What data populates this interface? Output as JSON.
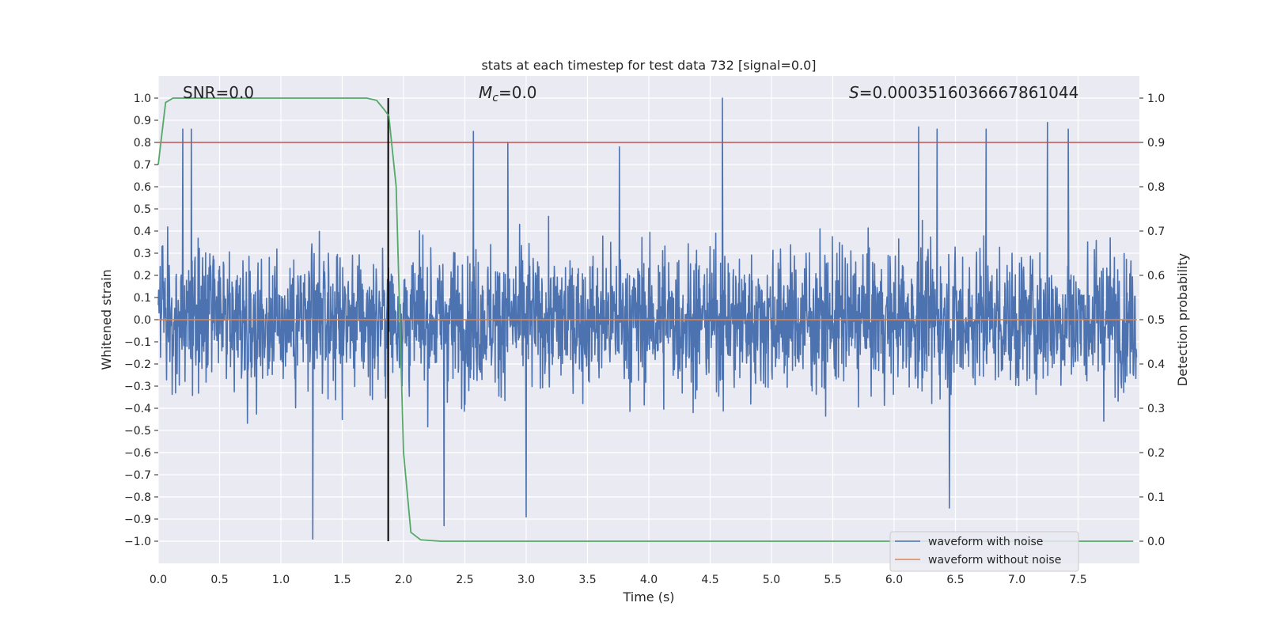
{
  "chart_data": {
    "type": "line",
    "title": "stats at each timestep for test data 732 [signal=0.0]",
    "xlabel": "Time (s)",
    "ylabel": "Whitened strain",
    "ylabel_right": "Detection probability",
    "xlim": [
      0.0,
      8.0
    ],
    "ylim": [
      -1.1,
      1.1
    ],
    "ylim_right": [
      -0.05,
      1.05
    ],
    "grid": true,
    "legend_position": "lower-right",
    "x_ticks": [
      0.0,
      0.5,
      1.0,
      1.5,
      2.0,
      2.5,
      3.0,
      3.5,
      4.0,
      4.5,
      5.0,
      5.5,
      6.0,
      6.5,
      7.0,
      7.5
    ],
    "x_tick_labels": [
      "0.0",
      "0.5",
      "1.0",
      "1.5",
      "2.0",
      "2.5",
      "3.0",
      "3.5",
      "4.0",
      "4.5",
      "5.0",
      "5.5",
      "6.0",
      "6.5",
      "7.0",
      "7.5"
    ],
    "y_ticks": [
      1.0,
      0.9,
      0.8,
      0.7,
      0.6,
      0.5,
      0.4,
      0.3,
      0.2,
      0.1,
      0.0,
      -0.1,
      -0.2,
      -0.3,
      -0.4,
      -0.5,
      -0.6,
      -0.7,
      -0.8,
      -0.9,
      -1.0
    ],
    "y_tick_labels": [
      "1.0",
      "0.9",
      "0.8",
      "0.7",
      "0.6",
      "0.5",
      "0.4",
      "0.3",
      "0.2",
      "0.1",
      "0.0",
      "−0.1",
      "−0.2",
      "−0.3",
      "−0.4",
      "−0.5",
      "−0.6",
      "−0.7",
      "−0.8",
      "−0.9",
      "−1.0"
    ],
    "y_right_ticks": [
      1.0,
      0.9,
      0.8,
      0.7,
      0.6,
      0.5,
      0.4,
      0.3,
      0.2,
      0.1,
      0.0
    ],
    "y_right_tick_labels": [
      "1.0",
      "0.9",
      "0.8",
      "0.7",
      "0.6",
      "0.5",
      "0.4",
      "0.3",
      "0.2",
      "0.1",
      "0.0"
    ],
    "annotations": {
      "snr": "SNR=0.0",
      "mc_symbol": "M",
      "mc_sub": "c",
      "mc_value": "=0.0",
      "s_symbol": "S",
      "s_value": "=0.0003516036667861044"
    },
    "threshold": {
      "value": 0.9,
      "axis": "right",
      "color": "#c44e52"
    },
    "vline": {
      "x": 1.875,
      "color": "#000000"
    },
    "series": [
      {
        "name": "waveform with noise",
        "color": "#4c72b0",
        "description_peaks": [
          [
            0.2,
            0.86
          ],
          [
            0.27,
            0.86
          ],
          [
            1.26,
            -0.99
          ],
          [
            2.33,
            -0.93
          ],
          [
            2.57,
            0.85
          ],
          [
            2.85,
            0.8
          ],
          [
            3.0,
            -0.89
          ],
          [
            3.76,
            0.78
          ],
          [
            4.6,
            1.0
          ],
          [
            6.2,
            0.87
          ],
          [
            6.35,
            0.86
          ],
          [
            6.45,
            -0.85
          ],
          [
            6.75,
            0.86
          ],
          [
            7.25,
            0.89
          ],
          [
            7.42,
            0.86
          ]
        ]
      },
      {
        "name": "waveform without noise",
        "color": "#dd8452",
        "constant": 0.0
      },
      {
        "name": "",
        "axis": "right",
        "color": "#55a868",
        "x": [
          0.0,
          0.06,
          0.12,
          0.2,
          0.5,
          1.0,
          1.5,
          1.7,
          1.78,
          1.84,
          1.88,
          1.94,
          2.0,
          2.06,
          2.14,
          2.3,
          3.0,
          4.0,
          5.0,
          6.0,
          7.0,
          7.95
        ],
        "y": [
          0.85,
          0.99,
          1.0,
          1.0,
          1.0,
          1.0,
          1.0,
          1.0,
          0.995,
          0.975,
          0.96,
          0.8,
          0.2,
          0.02,
          0.003,
          0.0,
          0.0,
          0.0,
          0.0,
          0.0,
          0.0,
          0.0
        ]
      }
    ]
  }
}
